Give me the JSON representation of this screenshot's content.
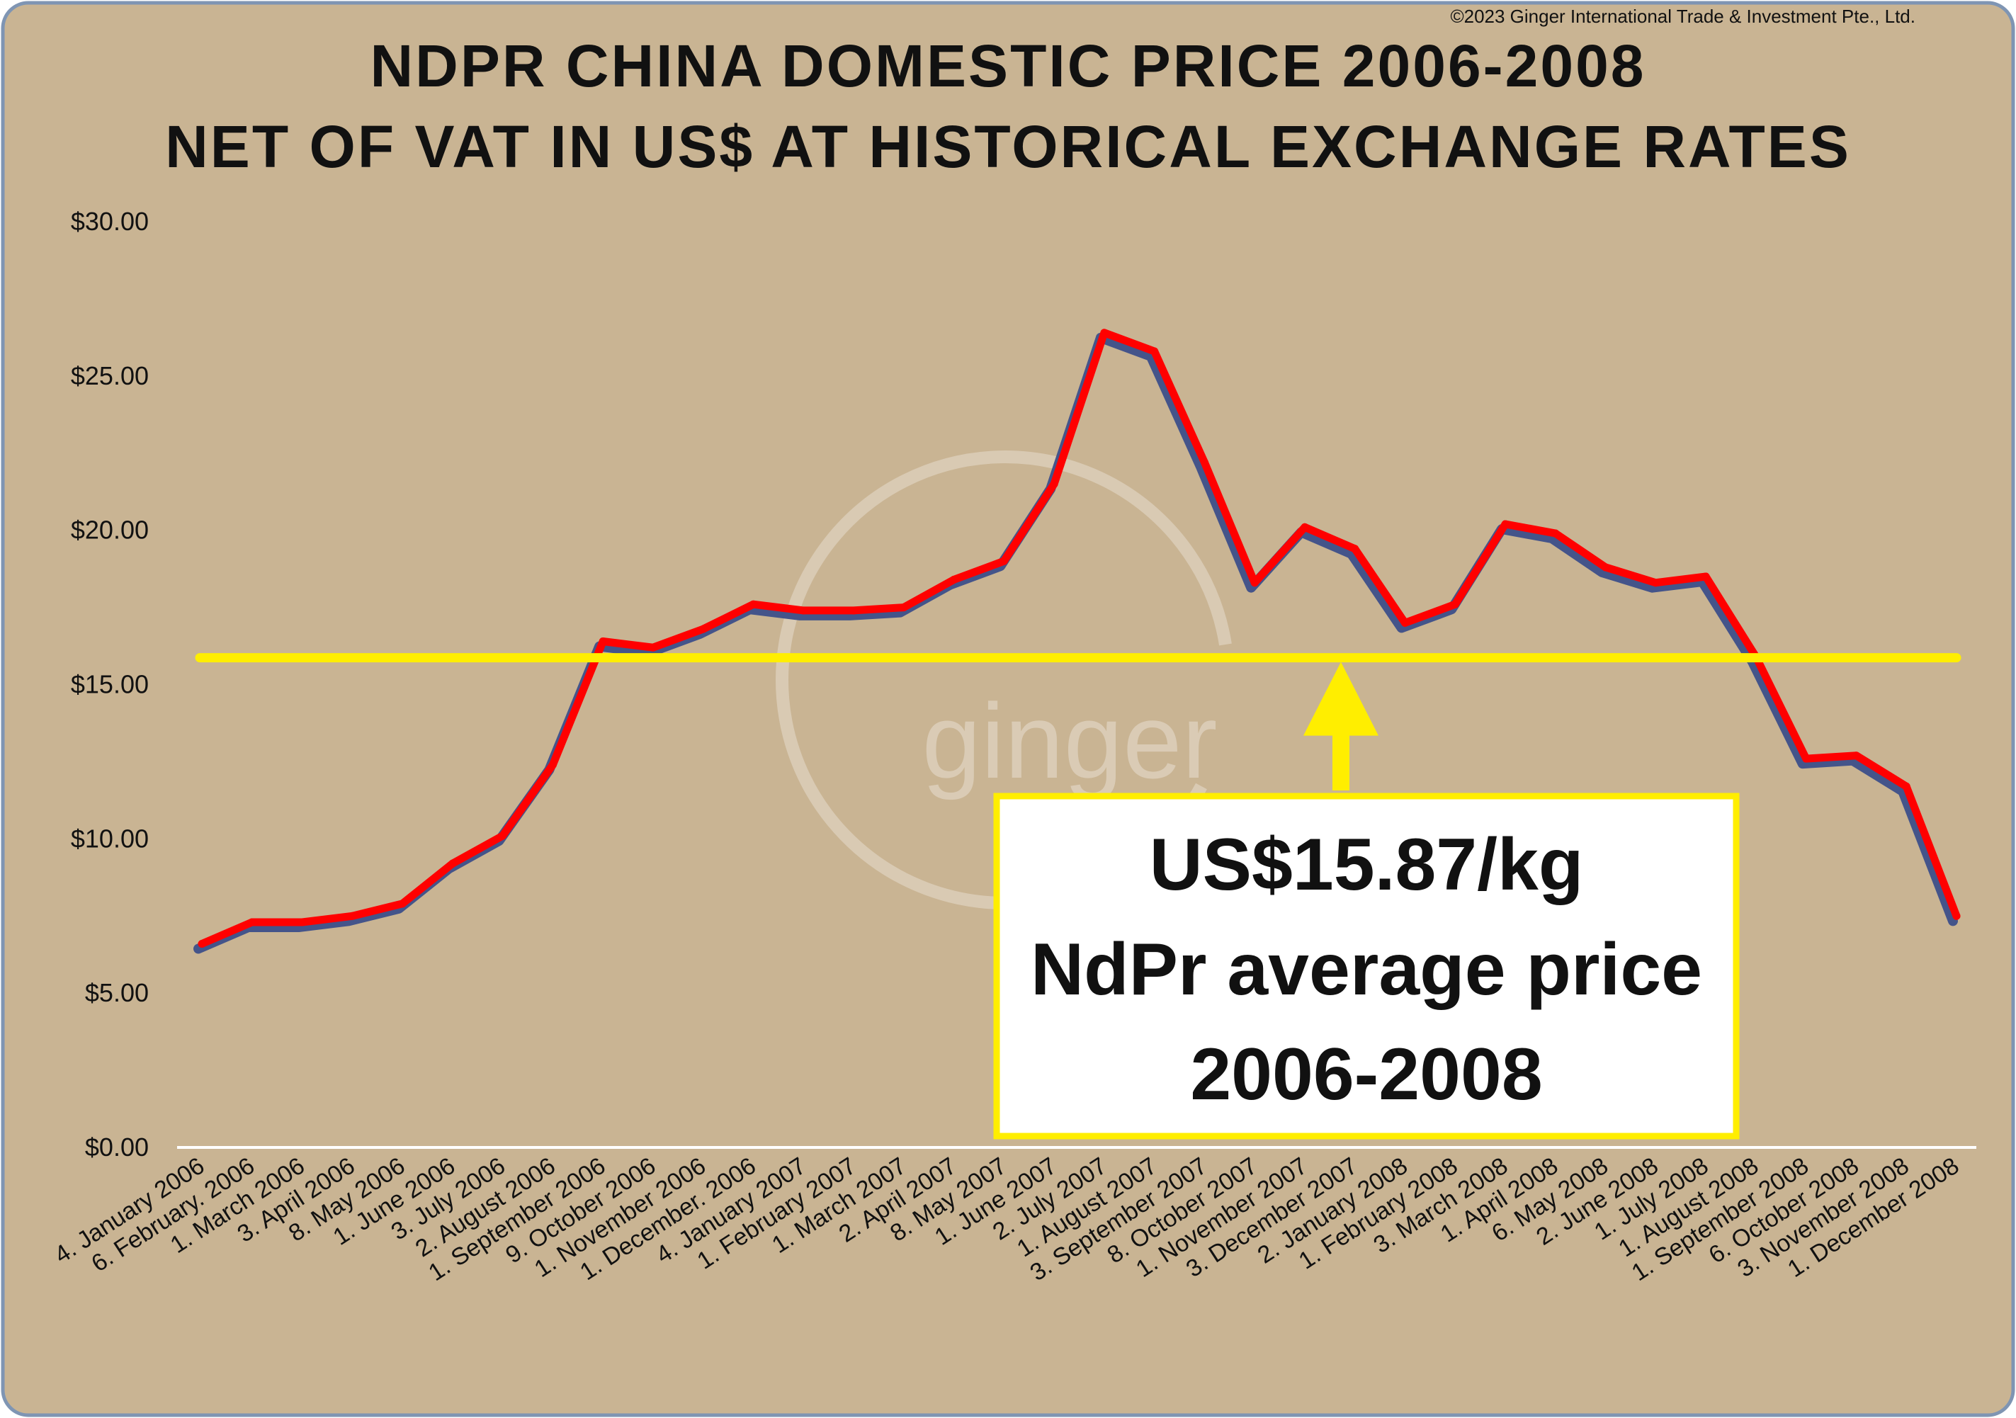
{
  "copyright": "©2023 Ginger International Trade & Investment Pte., Ltd.",
  "watermark": "ginger",
  "colors": {
    "background": "#c9b493",
    "border": "#7f95b3",
    "price_line": "#ff0000",
    "price_shadow": "#44548a",
    "average_line": "#ffee00",
    "baseline": "#ffffff",
    "annotation_fill": "#ffffff",
    "annotation_border": "#ffee00"
  },
  "chart_data": {
    "type": "line",
    "title": "NDPR CHINA DOMESTIC PRICE 2006-2008",
    "subtitle": "NET OF VAT IN US$ AT HISTORICAL EXCHANGE RATES",
    "xlabel": "",
    "ylabel": "",
    "ylim": [
      0,
      30
    ],
    "y_ticks": [
      "$0.00",
      "$5.00",
      "$10.00",
      "$15.00",
      "$20.00",
      "$25.00",
      "$30.00"
    ],
    "y_tick_values": [
      0,
      5,
      10,
      15,
      20,
      25,
      30
    ],
    "grid": false,
    "legend": "none",
    "categories": [
      "4. January 2006",
      "6. February. 2006",
      "1. March 2006",
      "3. April 2006",
      "8. May 2006",
      "1. June 2006",
      "3. July 2006",
      "2. August 2006",
      "1. September 2006",
      "9. October 2006",
      "1. November 2006",
      "1. December. 2006",
      "4. January 2007",
      "1. February 2007",
      "1. March 2007",
      "2. April 2007",
      "8. May 2007",
      "1. June 2007",
      "2. July 2007",
      "1. August 2007",
      "3. September 2007",
      "8. October 2007",
      "1. November 2007",
      "3. December 2007",
      "2. January 2008",
      "1. February 2008",
      "3. March 2008",
      "1. April 2008",
      "6. May 2008",
      "2. June 2008",
      "1. July 2008",
      "1. August 2008",
      "1. September 2008",
      "6. October 2008",
      "3. November 2008",
      "1. December 2008"
    ],
    "series": [
      {
        "values": [
          6.6,
          7.3,
          7.3,
          7.5,
          7.9,
          9.2,
          10.1,
          12.4,
          16.4,
          16.2,
          16.8,
          17.6,
          17.4,
          17.4,
          17.5,
          18.4,
          19.0,
          21.5,
          26.4,
          25.8,
          22.2,
          18.3,
          20.1,
          19.4,
          17.0,
          17.6,
          20.2,
          19.9,
          18.8,
          18.3,
          18.5,
          15.9,
          12.6,
          12.7,
          11.7,
          7.5
        ]
      }
    ],
    "average_line": {
      "value": 15.87,
      "label_lines": [
        "US$15.87/kg",
        "NdPr average price",
        "2006-2008"
      ]
    }
  }
}
